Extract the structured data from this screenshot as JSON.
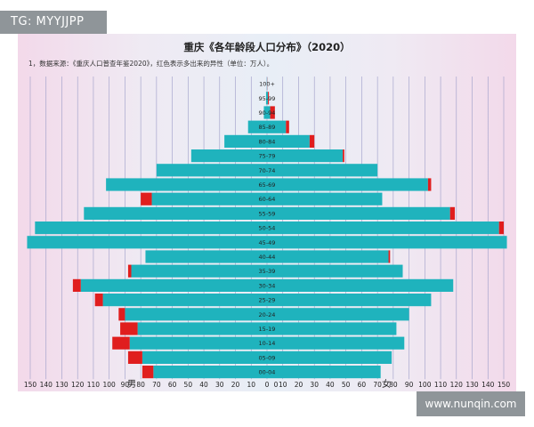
{
  "watermark_tag": "TG: MYYJJPP",
  "website": "www.nunqin.com",
  "colors": {
    "bar": "#1fb3bd",
    "excess": "#e01e1e",
    "grid": "#9c9cc8"
  },
  "chart_data": {
    "type": "bar",
    "orientation": "horizontal-population-pyramid",
    "title": "重庆《各年龄段人口分布》（2020）",
    "subtitle": "1，数据来源：《重庆人口普查年鉴2020》，红色表示多出来的异性（单位：万人）。",
    "left_label": "男",
    "right_label": "女",
    "x_ticks_left": [
      "150",
      "140",
      "130",
      "120",
      "110",
      "100",
      "90",
      "80",
      "70",
      "60",
      "50",
      "40",
      "30",
      "20",
      "10",
      "0"
    ],
    "x_ticks_right": [
      "0",
      "10",
      "20",
      "30",
      "40",
      "50",
      "60",
      "70",
      "80",
      "90",
      "100",
      "110",
      "120",
      "130",
      "140",
      "150"
    ],
    "xlim": [
      0,
      150
    ],
    "categories": [
      "100+",
      "95-99",
      "90-94",
      "85-89",
      "80-84",
      "75-79",
      "70-74",
      "65-69",
      "60-64",
      "55-59",
      "50-54",
      "45-49",
      "40-44",
      "35-39",
      "30-34",
      "25-29",
      "20-24",
      "15-19",
      "10-14",
      "05-09",
      "00-04"
    ],
    "series": [
      {
        "name": "男",
        "values": [
          0.1,
          0.6,
          2,
          12,
          27,
          48,
          70,
          102,
          80,
          116,
          147,
          152,
          77,
          88,
          123,
          109,
          94,
          93,
          98,
          88,
          79
        ]
      },
      {
        "name": "女",
        "values": [
          0.2,
          1.2,
          5,
          14,
          30,
          49,
          70,
          104,
          73,
          119,
          150,
          152,
          78,
          86,
          118,
          104,
          90,
          82,
          87,
          79,
          72
        ]
      }
    ]
  }
}
